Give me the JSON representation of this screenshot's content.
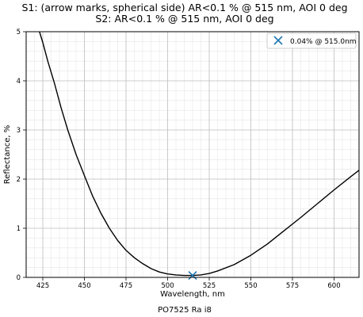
{
  "chart_data": {
    "type": "line",
    "title_line1": "S1: (arrow marks, spherical side) AR<0.1 % @ 515 nm, AOI 0 deg",
    "title_line2": "S2: AR<0.1 % @ 515 nm, AOI 0 deg",
    "xlabel": "Wavelength, nm",
    "ylabel": "Reflectance, %",
    "xlim": [
      415,
      615
    ],
    "ylim": [
      0,
      5
    ],
    "x_major_ticks": [
      425,
      450,
      475,
      500,
      525,
      550,
      575,
      600
    ],
    "x_tick_labels": [
      "425",
      "450",
      "475",
      "500",
      "525",
      "550",
      "575",
      "600"
    ],
    "y_major_ticks": [
      0,
      1,
      2,
      3,
      4,
      5
    ],
    "y_tick_labels": [
      "0",
      "1",
      "2",
      "3",
      "4",
      "5"
    ],
    "x_minor_step": 5,
    "y_minor_step": 0.2,
    "grid": true,
    "legend_position": "top-right",
    "series": [
      {
        "color": "#000000",
        "x": [
          423,
          425,
          428,
          432,
          436,
          440,
          445,
          450,
          455,
          460,
          465,
          470,
          475,
          480,
          485,
          490,
          495,
          500,
          505,
          510,
          515,
          520,
          525,
          530,
          540,
          550,
          560,
          570,
          580,
          590,
          600,
          610,
          615
        ],
        "y": [
          5.0,
          4.78,
          4.4,
          3.95,
          3.45,
          3.0,
          2.5,
          2.07,
          1.65,
          1.3,
          1.0,
          0.75,
          0.55,
          0.4,
          0.28,
          0.18,
          0.11,
          0.07,
          0.05,
          0.04,
          0.04,
          0.05,
          0.08,
          0.13,
          0.26,
          0.45,
          0.68,
          0.95,
          1.22,
          1.5,
          1.78,
          2.05,
          2.18
        ]
      }
    ],
    "marker": {
      "x": 515.0,
      "y": 0.04,
      "color": "#1f77b4",
      "label": "0.04% @ 515.0nm"
    },
    "caption": "PO7525 Ra i8"
  }
}
